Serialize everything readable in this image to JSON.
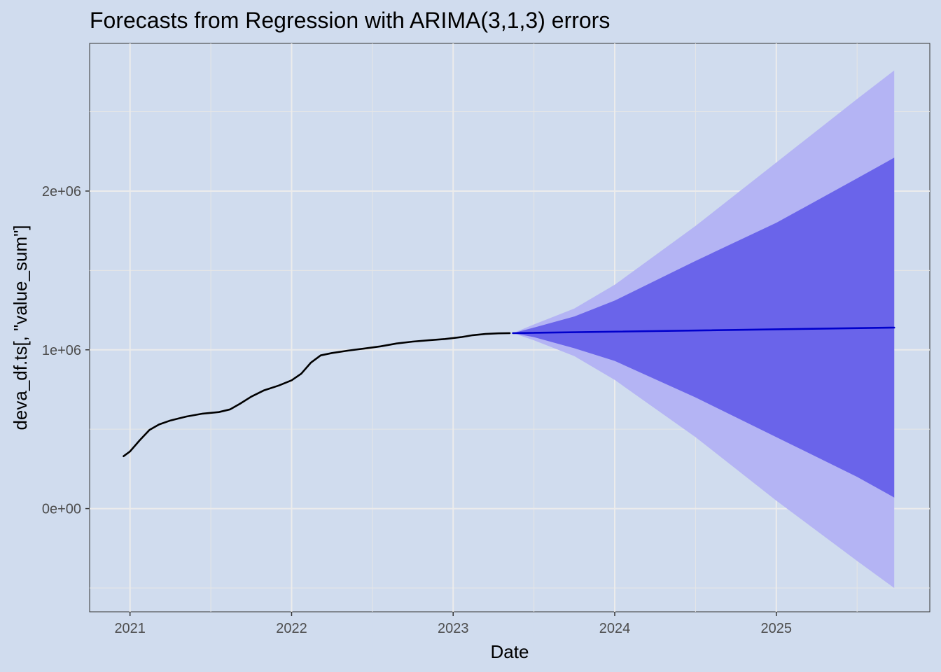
{
  "chart_data": {
    "type": "line",
    "title": "Forecasts from Regression with ARIMA(3,1,3) errors",
    "xlabel": "Date",
    "ylabel": "deva_df.ts[, \"value_sum\"]",
    "xlim": [
      2020.75,
      2025.95
    ],
    "ylim": [
      -650000,
      2930000
    ],
    "grid": true,
    "x_ticks": [
      {
        "value": 2021,
        "label": "2021"
      },
      {
        "value": 2022,
        "label": "2022"
      },
      {
        "value": 2023,
        "label": "2023"
      },
      {
        "value": 2024,
        "label": "2024"
      },
      {
        "value": 2025,
        "label": "2025"
      }
    ],
    "y_ticks": [
      {
        "value": 0,
        "label": "0e+00"
      },
      {
        "value": 1000000,
        "label": "1e+06"
      },
      {
        "value": 2000000,
        "label": "2e+06"
      }
    ],
    "series": [
      {
        "role": "observed",
        "color": "#000000",
        "x": [
          2020.96,
          2021.0,
          2021.06,
          2021.12,
          2021.18,
          2021.25,
          2021.35,
          2021.45,
          2021.55,
          2021.62,
          2021.68,
          2021.75,
          2021.83,
          2021.92,
          2022.0,
          2022.06,
          2022.12,
          2022.18,
          2022.25,
          2022.35,
          2022.45,
          2022.55,
          2022.65,
          2022.75,
          2022.85,
          2022.95,
          2023.05,
          2023.12,
          2023.2,
          2023.28,
          2023.35
        ],
        "y": [
          330000,
          360000,
          430000,
          495000,
          530000,
          555000,
          580000,
          598000,
          608000,
          625000,
          660000,
          705000,
          745000,
          775000,
          808000,
          850000,
          920000,
          965000,
          980000,
          995000,
          1008000,
          1022000,
          1040000,
          1052000,
          1060000,
          1068000,
          1080000,
          1092000,
          1100000,
          1104000,
          1105000
        ]
      },
      {
        "role": "forecast_mean",
        "color": "#0000cc",
        "x": [
          2023.37,
          2025.73
        ],
        "y": [
          1105000,
          1140000
        ]
      }
    ],
    "bands": [
      {
        "level": "95%",
        "color": "#b4b4f4",
        "x": [
          2023.37,
          2023.5,
          2023.75,
          2024.0,
          2024.5,
          2025.0,
          2025.5,
          2025.73
        ],
        "lower": [
          1105000,
          1060000,
          960000,
          810000,
          450000,
          50000,
          -330000,
          -500000
        ],
        "upper": [
          1105000,
          1160000,
          1260000,
          1410000,
          1780000,
          2180000,
          2580000,
          2760000
        ]
      },
      {
        "level": "80%",
        "color": "#6a64ea",
        "x": [
          2023.37,
          2023.5,
          2023.75,
          2024.0,
          2024.5,
          2025.0,
          2025.5,
          2025.73
        ],
        "lower": [
          1105000,
          1080000,
          1010000,
          930000,
          700000,
          450000,
          200000,
          70000
        ],
        "upper": [
          1105000,
          1140000,
          1210000,
          1310000,
          1560000,
          1800000,
          2080000,
          2210000
        ]
      }
    ]
  }
}
